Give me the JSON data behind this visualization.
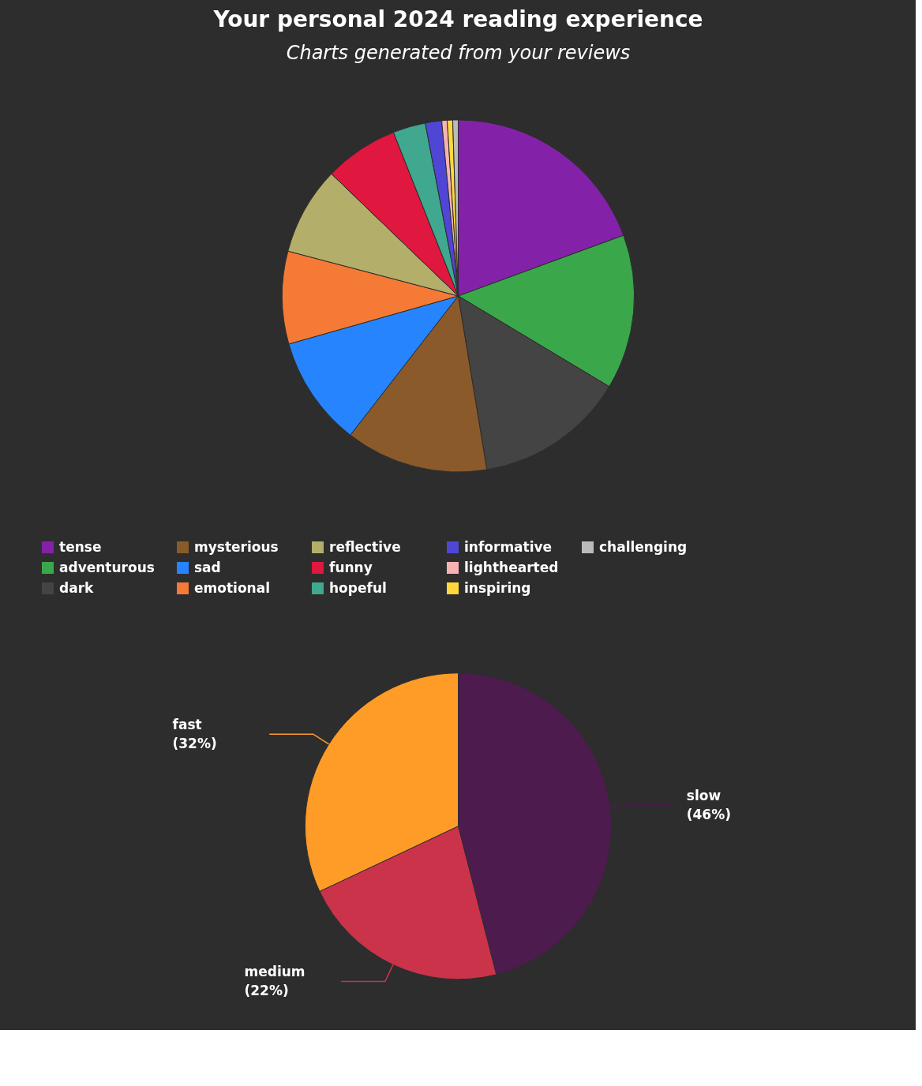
{
  "chart_data": [
    {
      "type": "pie",
      "title": "Your personal 2024 reading experience",
      "subtitle": "Charts generated from your reviews",
      "categories": [
        "tense",
        "adventurous",
        "dark",
        "mysterious",
        "sad",
        "emotional",
        "reflective",
        "funny",
        "hopeful",
        "informative",
        "lighthearted",
        "inspiring",
        "challenging"
      ],
      "values": [
        19.4,
        14.2,
        13.8,
        13.1,
        10.1,
        8.5,
        8.1,
        6.8,
        3.0,
        1.5,
        0.5,
        0.5,
        0.5
      ],
      "colors": [
        "#8322a8",
        "#3aa84a",
        "#444444",
        "#8b5a2b",
        "#2684ff",
        "#f47a36",
        "#b3ae6a",
        "#e0173f",
        "#40a88e",
        "#5046d6",
        "#f7b3b3",
        "#ffd93b",
        "#bbbbbb"
      ],
      "legend": "bottom"
    },
    {
      "type": "pie",
      "categories": [
        "slow",
        "medium",
        "fast"
      ],
      "values": [
        46,
        22,
        32
      ],
      "colors": [
        "#4e1b4e",
        "#cb334b",
        "#ff9c27"
      ],
      "value_labels": [
        "(46%)",
        "(22%)",
        "(32%)"
      ]
    }
  ]
}
